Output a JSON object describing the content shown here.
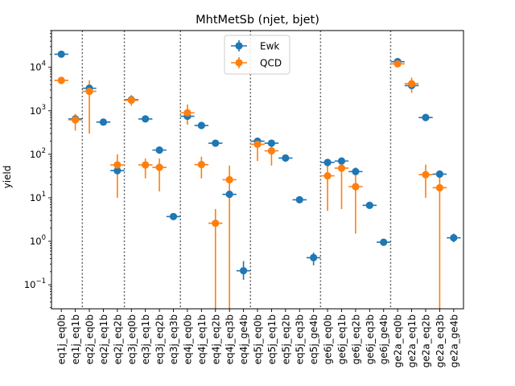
{
  "chart_data": {
    "type": "scatter",
    "title": "MhtMetSb (njet, bjet)",
    "xlabel": "",
    "ylabel": "yield",
    "yscale": "log",
    "ylim": [
      0.028,
      70000
    ],
    "yticks": [
      {
        "value": 0.1,
        "base": "10",
        "exp": "−1"
      },
      {
        "value": 1,
        "base": "10",
        "exp": "0"
      },
      {
        "value": 10,
        "base": "10",
        "exp": "1"
      },
      {
        "value": 100,
        "base": "10",
        "exp": "2"
      },
      {
        "value": 1000,
        "base": "10",
        "exp": "3"
      },
      {
        "value": 10000,
        "base": "10",
        "exp": "4"
      }
    ],
    "categories": [
      "eq1j_eq0b",
      "eq1j_eq1b",
      "eq2j_eq0b",
      "eq2j_eq1b",
      "eq2j_eq2b",
      "eq3j_eq0b",
      "eq3j_eq1b",
      "eq3j_eq2b",
      "eq3j_eq3b",
      "eq4j_eq0b",
      "eq4j_eq1b",
      "eq4j_eq2b",
      "eq4j_eq3b",
      "eq4j_ge4b",
      "eq5j_eq0b",
      "eq5j_eq1b",
      "eq5j_eq2b",
      "eq5j_eq3b",
      "eq5j_ge4b",
      "ge6j_eq0b",
      "ge6j_eq1b",
      "ge6j_eq2b",
      "ge6j_eq3b",
      "ge6j_ge4b",
      "ge2a_eq0b",
      "ge2a_eq1b",
      "ge2a_eq2b",
      "ge2a_eq3b",
      "ge2a_ge4b"
    ],
    "separators_after": [
      1,
      4,
      8,
      13,
      18,
      23
    ],
    "legend": "upper-center",
    "grid": false,
    "series": [
      {
        "name": "Ewk",
        "color": "#1f77b4",
        "values": [
          20000,
          650,
          3300,
          550,
          42,
          1800,
          650,
          125,
          3.7,
          750,
          460,
          180,
          12,
          0.21,
          200,
          180,
          82,
          9,
          0.42,
          65,
          70,
          40,
          6.7,
          0.95,
          13500,
          3800,
          700,
          35,
          1.2
        ],
        "err_low": [
          null,
          null,
          null,
          null,
          null,
          null,
          null,
          null,
          null,
          null,
          null,
          null,
          null,
          0.13,
          null,
          null,
          null,
          null,
          0.28,
          null,
          null,
          null,
          null,
          0.8,
          null,
          null,
          null,
          null,
          0.95
        ],
        "err_high": [
          null,
          null,
          null,
          null,
          null,
          null,
          null,
          null,
          null,
          null,
          null,
          null,
          null,
          0.35,
          null,
          null,
          null,
          null,
          0.55,
          null,
          null,
          null,
          null,
          1.1,
          null,
          null,
          null,
          null,
          1.5
        ]
      },
      {
        "name": "QCD",
        "color": "#ff7f0e",
        "values": [
          5000,
          620,
          2800,
          null,
          57,
          1750,
          57,
          50,
          null,
          900,
          58,
          2.6,
          26,
          null,
          170,
          120,
          null,
          null,
          null,
          32,
          48,
          18,
          null,
          null,
          12000,
          4200,
          34,
          17,
          null
        ],
        "err_low": [
          null,
          350,
          300,
          null,
          10,
          1300,
          28,
          14,
          null,
          480,
          28,
          0.02,
          0.02,
          null,
          70,
          55,
          null,
          null,
          null,
          5,
          5.5,
          1.5,
          null,
          null,
          null,
          2600,
          10,
          0.02,
          null
        ],
        "err_high": [
          null,
          850,
          5000,
          null,
          100,
          2300,
          80,
          80,
          null,
          1400,
          88,
          5.5,
          55,
          null,
          220,
          180,
          null,
          null,
          null,
          70,
          80,
          50,
          null,
          null,
          null,
          5800,
          58,
          33,
          null
        ]
      }
    ]
  }
}
